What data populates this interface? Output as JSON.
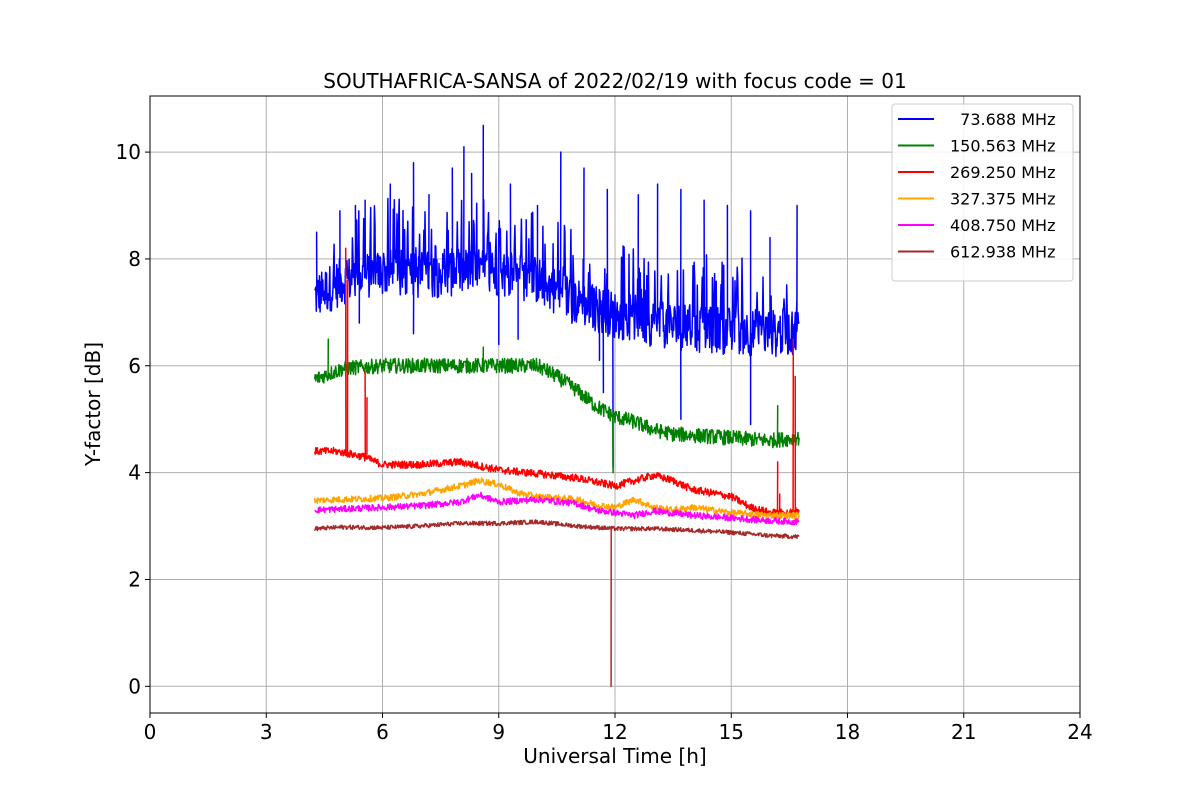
{
  "chart_data": {
    "type": "line",
    "title": "SOUTHAFRICA-SANSA of 2022/02/19 with focus code = 01",
    "xlabel": "Universal Time [h]",
    "ylabel": "Y-factor [dB]",
    "xlim": [
      0,
      24
    ],
    "ylim": [
      -0.5,
      11.05
    ],
    "xticks": [
      0,
      3,
      6,
      9,
      12,
      15,
      18,
      21,
      24
    ],
    "yticks": [
      0,
      2,
      4,
      6,
      8,
      10
    ],
    "grid": true,
    "legend_position": "upper right",
    "series": [
      {
        "name": "  73.688 MHz",
        "color": "#0000ff",
        "noise": 0.45,
        "x": [
          4.25,
          5,
          6,
          7,
          8,
          9,
          10,
          11,
          12,
          13,
          14,
          15,
          16,
          16.75
        ],
        "y": [
          7.3,
          7.6,
          7.75,
          7.7,
          7.75,
          7.75,
          7.6,
          7.2,
          6.95,
          6.8,
          6.7,
          6.65,
          6.6,
          6.65
        ],
        "spikes": [
          [
            4.3,
            8.5
          ],
          [
            4.9,
            8.9
          ],
          [
            5.3,
            9.0
          ],
          [
            5.55,
            9.1
          ],
          [
            6.2,
            9.4
          ],
          [
            6.8,
            9.8
          ],
          [
            7.2,
            9.2
          ],
          [
            7.8,
            9.7
          ],
          [
            8.1,
            10.1
          ],
          [
            8.3,
            9.6
          ],
          [
            8.6,
            10.5
          ],
          [
            9.3,
            9.4
          ],
          [
            10.0,
            9.0
          ],
          [
            10.6,
            10.0
          ],
          [
            11.2,
            9.7
          ],
          [
            11.8,
            9.3
          ],
          [
            12.6,
            9.2
          ],
          [
            13.1,
            9.4
          ],
          [
            13.7,
            9.3
          ],
          [
            14.3,
            9.1
          ],
          [
            14.9,
            9.0
          ],
          [
            15.5,
            8.9
          ],
          [
            16.0,
            8.4
          ],
          [
            16.7,
            9.0
          ],
          [
            5.4,
            6.8
          ],
          [
            6.8,
            6.6
          ],
          [
            9.0,
            6.4
          ],
          [
            9.5,
            6.5
          ],
          [
            11.6,
            6.1
          ],
          [
            11.7,
            5.5
          ],
          [
            11.95,
            4.1
          ],
          [
            13.7,
            5.0
          ],
          [
            15.5,
            4.9
          ]
        ]
      },
      {
        "name": "150.563 MHz",
        "color": "#008000",
        "noise": 0.14,
        "x": [
          4.25,
          5,
          6,
          7,
          8,
          9,
          10,
          10.5,
          11,
          11.5,
          12,
          12.5,
          13,
          13.5,
          14,
          15,
          16,
          16.75
        ],
        "y": [
          5.75,
          5.95,
          6.0,
          6.0,
          6.0,
          6.0,
          6.0,
          5.8,
          5.55,
          5.25,
          5.05,
          4.95,
          4.8,
          4.72,
          4.7,
          4.65,
          4.6,
          4.65
        ],
        "spikes": [
          [
            4.6,
            6.5
          ],
          [
            8.6,
            6.35
          ],
          [
            11.95,
            4.0
          ],
          [
            16.2,
            5.25
          ]
        ]
      },
      {
        "name": "269.250 MHz",
        "color": "#ff0000",
        "noise": 0.07,
        "x": [
          4.25,
          4.8,
          5.5,
          6,
          7,
          8,
          9,
          10,
          11,
          12,
          12.5,
          13,
          13.5,
          14,
          14.5,
          15,
          15.5,
          16,
          16.5,
          16.75
        ],
        "y": [
          4.4,
          4.4,
          4.3,
          4.15,
          4.15,
          4.2,
          4.05,
          3.98,
          3.9,
          3.75,
          3.85,
          3.95,
          3.85,
          3.68,
          3.62,
          3.55,
          3.35,
          3.25,
          3.25,
          3.3
        ],
        "spikes": [
          [
            5.05,
            8.2
          ],
          [
            5.1,
            7.6
          ],
          [
            5.55,
            5.9
          ],
          [
            5.6,
            5.4
          ],
          [
            16.2,
            4.2
          ],
          [
            16.25,
            3.6
          ],
          [
            16.6,
            6.5
          ],
          [
            16.65,
            5.8
          ]
        ]
      },
      {
        "name": "327.375 MHz",
        "color": "#ffa500",
        "noise": 0.06,
        "x": [
          4.25,
          5,
          6,
          7,
          8,
          8.5,
          9,
          9.5,
          10,
          11,
          11.5,
          12,
          12.5,
          13,
          13.5,
          14,
          15,
          16,
          16.75
        ],
        "y": [
          3.48,
          3.5,
          3.52,
          3.6,
          3.75,
          3.85,
          3.78,
          3.62,
          3.55,
          3.5,
          3.4,
          3.35,
          3.5,
          3.35,
          3.3,
          3.35,
          3.25,
          3.2,
          3.2
        ],
        "spikes": []
      },
      {
        "name": "408.750 MHz",
        "color": "#ff00ff",
        "noise": 0.06,
        "x": [
          4.25,
          5,
          6,
          7,
          8,
          8.5,
          9,
          10,
          11,
          11.5,
          12,
          12.5,
          13,
          14,
          15,
          16,
          16.75
        ],
        "y": [
          3.3,
          3.32,
          3.35,
          3.38,
          3.45,
          3.58,
          3.45,
          3.5,
          3.42,
          3.3,
          3.25,
          3.2,
          3.28,
          3.2,
          3.15,
          3.1,
          3.08
        ],
        "spikes": []
      },
      {
        "name": "612.938 MHz",
        "color": "#a52a2a",
        "noise": 0.04,
        "x": [
          4.25,
          5,
          6,
          7,
          8,
          9,
          10,
          11,
          12,
          13,
          14,
          15,
          16,
          16.75
        ],
        "y": [
          2.95,
          2.98,
          2.97,
          3.0,
          3.05,
          3.05,
          3.08,
          3.0,
          2.95,
          2.95,
          2.92,
          2.88,
          2.82,
          2.8
        ],
        "spikes": [
          [
            11.9,
            0.0
          ]
        ]
      }
    ]
  }
}
